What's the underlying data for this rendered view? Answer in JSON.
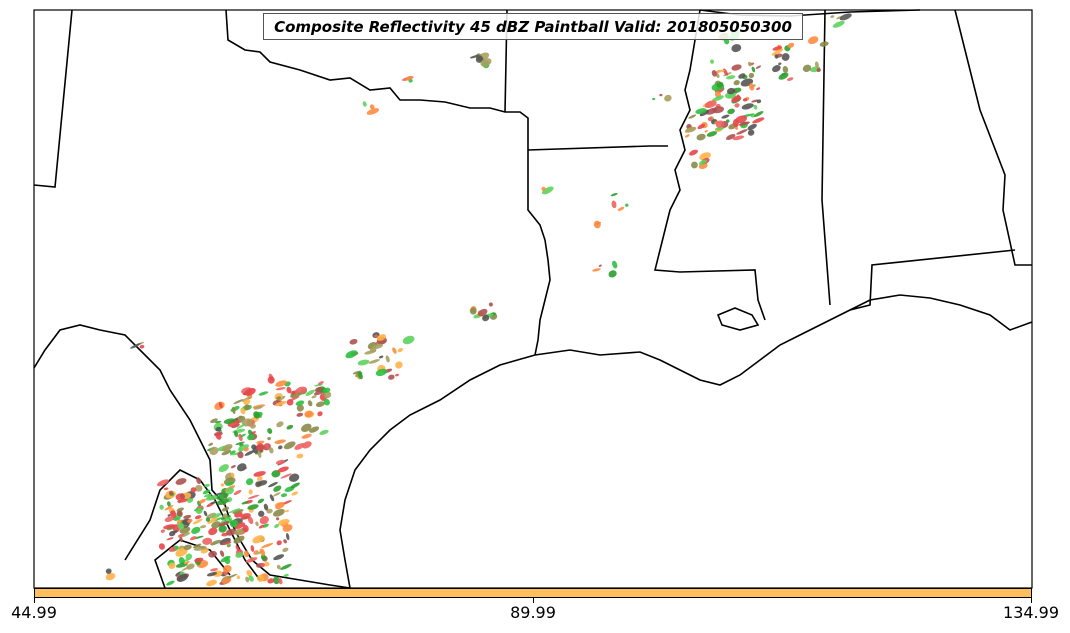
{
  "title": "Composite Reflectivity 45 dBZ Paintball Valid: 201805050300",
  "colorbar": {
    "color": "#ffbf5c",
    "ticks": [
      "44.99",
      "89.99",
      "134.99"
    ]
  },
  "colors": {
    "coast": "#000000",
    "palette": [
      "#ffb347",
      "#e8464a",
      "#f06060",
      "#5dd35d",
      "#2e9e2e",
      "#8a8a4a",
      "#a8a060",
      "#b05050",
      "#555555",
      "#ff8c40",
      "#2fbf3f"
    ]
  }
}
